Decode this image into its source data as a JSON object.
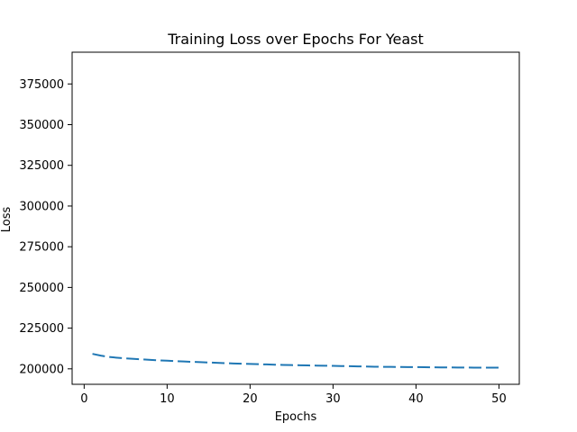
{
  "chart_data": {
    "type": "line",
    "title": "Training Loss over Epochs For Yeast",
    "xlabel": "Epochs",
    "ylabel": "Loss",
    "xlim": [
      -1.45,
      52.45
    ],
    "ylim": [
      190500,
      394500
    ],
    "x_ticks": [
      0,
      10,
      20,
      30,
      40,
      50
    ],
    "x_tick_labels": [
      "0",
      "10",
      "20",
      "30",
      "40",
      "50"
    ],
    "y_ticks": [
      200000,
      225000,
      250000,
      275000,
      300000,
      325000,
      350000,
      375000
    ],
    "y_tick_labels": [
      "200000",
      "225000",
      "250000",
      "275000",
      "300000",
      "325000",
      "350000",
      "375000"
    ],
    "grid": false,
    "series": [
      {
        "line_style": "dashed",
        "color": "#1f77b4",
        "x": [
          1,
          2,
          3,
          4,
          5,
          6,
          7,
          8,
          9,
          10,
          11,
          12,
          13,
          14,
          15,
          16,
          17,
          18,
          19,
          20,
          21,
          22,
          23,
          24,
          25,
          26,
          27,
          28,
          29,
          30,
          31,
          32,
          33,
          34,
          35,
          36,
          37,
          38,
          39,
          40,
          41,
          42,
          43,
          44,
          45,
          46,
          47,
          48,
          49,
          50
        ],
        "y": [
          209200,
          208100,
          207300,
          206800,
          206400,
          206100,
          205800,
          205500,
          205200,
          205000,
          204750,
          204500,
          204300,
          204100,
          203900,
          203700,
          203500,
          203300,
          203150,
          203000,
          202850,
          202700,
          202550,
          202400,
          202300,
          202200,
          202100,
          202000,
          201900,
          201800,
          201700,
          201600,
          201500,
          201400,
          201300,
          201250,
          201200,
          201150,
          201100,
          201050,
          201000,
          200950,
          200900,
          200850,
          200800,
          200780,
          200760,
          200740,
          200720,
          200700
        ]
      }
    ]
  }
}
